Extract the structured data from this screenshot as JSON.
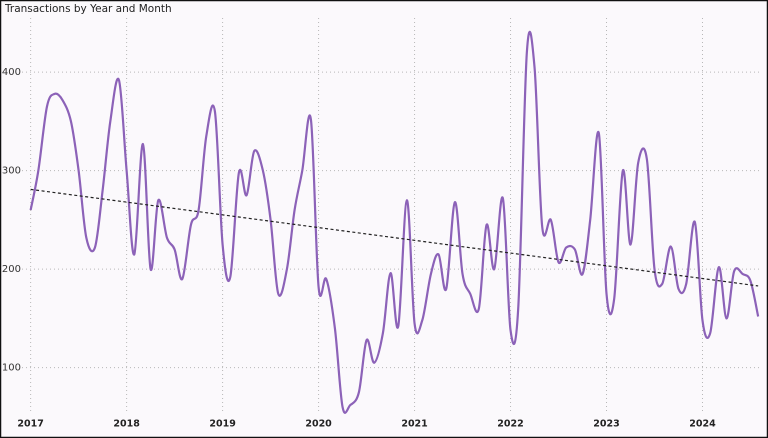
{
  "chart_data": {
    "type": "line",
    "title": "Transactions by Year and Month",
    "x": [
      2017.0,
      2017.08,
      2017.17,
      2017.25,
      2017.33,
      2017.42,
      2017.5,
      2017.58,
      2017.67,
      2017.75,
      2017.83,
      2017.92,
      2018.0,
      2018.08,
      2018.17,
      2018.25,
      2018.33,
      2018.42,
      2018.5,
      2018.58,
      2018.67,
      2018.75,
      2018.83,
      2018.92,
      2019.0,
      2019.08,
      2019.17,
      2019.25,
      2019.33,
      2019.42,
      2019.5,
      2019.58,
      2019.67,
      2019.75,
      2019.83,
      2019.92,
      2020.0,
      2020.08,
      2020.17,
      2020.25,
      2020.33,
      2020.42,
      2020.5,
      2020.58,
      2020.67,
      2020.75,
      2020.83,
      2020.92,
      2021.0,
      2021.08,
      2021.17,
      2021.25,
      2021.33,
      2021.42,
      2021.5,
      2021.58,
      2021.67,
      2021.75,
      2021.83,
      2021.92,
      2022.0,
      2022.08,
      2022.17,
      2022.25,
      2022.33,
      2022.42,
      2022.5,
      2022.58,
      2022.67,
      2022.75,
      2022.83,
      2022.92,
      2023.0,
      2023.08,
      2023.17,
      2023.25,
      2023.33,
      2023.42,
      2023.5,
      2023.58,
      2023.67,
      2023.75,
      2023.83,
      2023.92,
      2024.0,
      2024.08,
      2024.17,
      2024.25,
      2024.33,
      2024.42,
      2024.5,
      2024.58
    ],
    "series": [
      {
        "color": "#8c62b8",
        "values": [
          260,
          300,
          365,
          378,
          372,
          350,
          300,
          232,
          222,
          280,
          350,
          392,
          300,
          215,
          327,
          200,
          270,
          232,
          220,
          190,
          245,
          260,
          335,
          360,
          225,
          192,
          298,
          275,
          320,
          300,
          250,
          175,
          200,
          260,
          300,
          352,
          182,
          190,
          140,
          60,
          62,
          75,
          128,
          105,
          135,
          196,
          142,
          270,
          145,
          148,
          195,
          215,
          180,
          268,
          195,
          175,
          160,
          245,
          200,
          272,
          138,
          160,
          420,
          405,
          243,
          250,
          207,
          222,
          220,
          195,
          250,
          338,
          175,
          170,
          300,
          225,
          308,
          312,
          200,
          185,
          223,
          180,
          185,
          248,
          148,
          135,
          202,
          150,
          198,
          195,
          188,
          152
        ]
      }
    ],
    "trend": {
      "color": "#222222",
      "values": [
        281,
        183
      ]
    },
    "xlim": [
      2016.91,
      2024.62
    ],
    "xticks": [
      2017,
      2018,
      2019,
      2020,
      2021,
      2022,
      2023,
      2024
    ],
    "ylim": [
      55,
      455
    ],
    "yticks": [
      100,
      200,
      300,
      400
    ],
    "grid": true
  }
}
